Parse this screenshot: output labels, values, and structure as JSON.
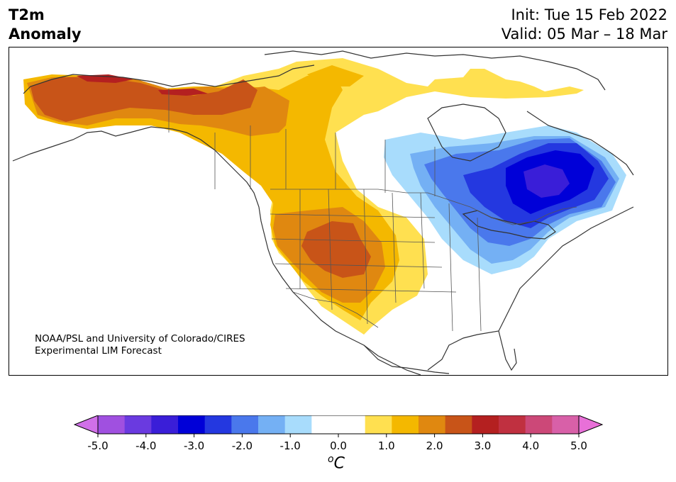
{
  "header": {
    "title_line1": "T2m",
    "title_line2": "Anomaly",
    "init": "Init: Tue 15 Feb 2022",
    "valid": "Valid: 05 Mar – 18 Mar"
  },
  "credit": {
    "line1": "NOAA/PSL and University of Colorado/CIRES",
    "line2": "Experimental LIM Forecast"
  },
  "colorbar": {
    "unit_base": "C",
    "unit_sup": "o",
    "ticks": [
      "-5.0",
      "-4.0",
      "-3.0",
      "-2.0",
      "-1.0",
      "0.0",
      "1.0",
      "2.0",
      "3.0",
      "4.0",
      "5.0"
    ],
    "colors": [
      "#a050e0",
      "#6a3ae0",
      "#3a1ed8",
      "#0000d8",
      "#2438e0",
      "#4a78ec",
      "#74b0f4",
      "#a8dcfc",
      "#ffffff",
      "#ffffff",
      "#ffe050",
      "#f4b800",
      "#e08810",
      "#c85418",
      "#b42020",
      "#c03040",
      "#cc4878",
      "#d860a8"
    ],
    "low_extend_color": "#d070e8",
    "high_extend_color": "#e870d8"
  },
  "map": {
    "palette": {
      "d1": "#ffe050",
      "d2": "#f4b800",
      "d3": "#e08810",
      "d4": "#c85418",
      "d5": "#b42020",
      "c1": "#a8dcfc",
      "c2": "#74b0f4",
      "c3": "#4a78ec",
      "c4": "#2438e0",
      "c5": "#0000d8",
      "c6": "#3a1ed8"
    }
  }
}
